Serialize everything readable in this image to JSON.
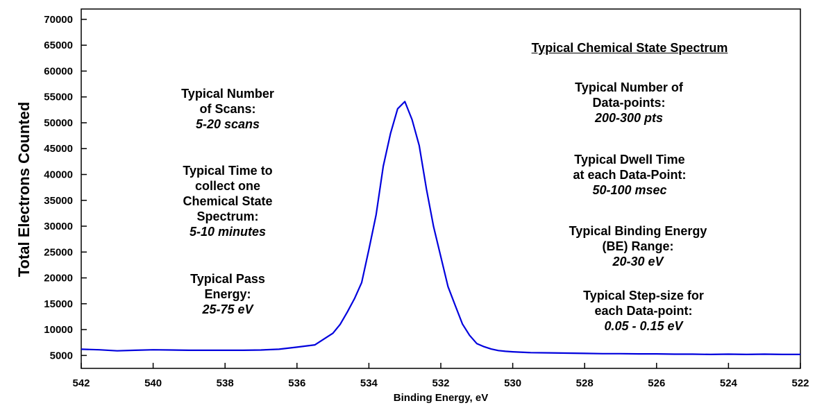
{
  "chart_data": {
    "type": "line",
    "xlabel": "Binding Energy, eV",
    "ylabel": "Total Electrons Counted",
    "xlim": [
      542,
      522
    ],
    "ylim": [
      2500,
      72000
    ],
    "x_reversed": true,
    "grid": false,
    "line_color": "#0000dd",
    "xticks": [
      542,
      540,
      538,
      536,
      534,
      532,
      530,
      528,
      526,
      524,
      522
    ],
    "yticks": [
      5000,
      10000,
      15000,
      20000,
      25000,
      30000,
      35000,
      40000,
      45000,
      50000,
      55000,
      60000,
      65000,
      70000
    ],
    "series": [
      {
        "x": [
          542,
          541.5,
          541,
          540.5,
          540,
          539.5,
          539,
          538.5,
          538,
          537.5,
          537,
          536.5,
          536,
          535.5,
          535,
          534.8,
          534.6,
          534.4,
          534.2,
          534.0,
          533.8,
          533.6,
          533.4,
          533.2,
          533.0,
          532.8,
          532.6,
          532.4,
          532.2,
          532.0,
          531.8,
          531.6,
          531.4,
          531.2,
          531.0,
          530.8,
          530.6,
          530.4,
          530.2,
          530,
          529.5,
          529,
          528.5,
          528,
          527.5,
          527,
          526.5,
          526,
          525.5,
          525,
          524.5,
          524,
          523.5,
          523,
          522.5,
          522
        ],
        "y": [
          6200,
          6100,
          5900,
          6000,
          6100,
          6050,
          6000,
          6000,
          6000,
          6000,
          6050,
          6200,
          6600,
          7050,
          9300,
          11000,
          13400,
          16000,
          19100,
          25500,
          32200,
          41600,
          47900,
          52700,
          54100,
          50600,
          45600,
          37200,
          29900,
          24100,
          18300,
          14700,
          11100,
          8900,
          7300,
          6700,
          6250,
          5950,
          5800,
          5700,
          5550,
          5500,
          5450,
          5400,
          5350,
          5350,
          5300,
          5300,
          5250,
          5250,
          5200,
          5250,
          5200,
          5250,
          5200,
          5200
        ]
      }
    ]
  },
  "annotations": {
    "title": "Typical Chemical State Spectrum",
    "scans": {
      "l1": "Typical Number",
      "l2": "of Scans:",
      "value": "5-20 scans"
    },
    "time": {
      "l1": "Typical Time to",
      "l2": "collect one",
      "l3": "Chemical State",
      "l4": "Spectrum:",
      "value": "5-10 minutes"
    },
    "pass": {
      "l1": "Typical Pass",
      "l2": "Energy:",
      "value": "25-75 eV"
    },
    "points": {
      "l1": "Typical Number of",
      "l2": "Data-points:",
      "value": "200-300 pts"
    },
    "dwell": {
      "l1": "Typical Dwell Time",
      "l2": "at each Data-Point:",
      "value": "50-100 msec"
    },
    "range": {
      "l1": "Typical Binding Energy",
      "l2": "(BE) Range:",
      "value": "20-30 eV"
    },
    "step": {
      "l1": "Typical Step-size for",
      "l2": "each Data-point:",
      "value": "0.05 - 0.15 eV"
    }
  }
}
